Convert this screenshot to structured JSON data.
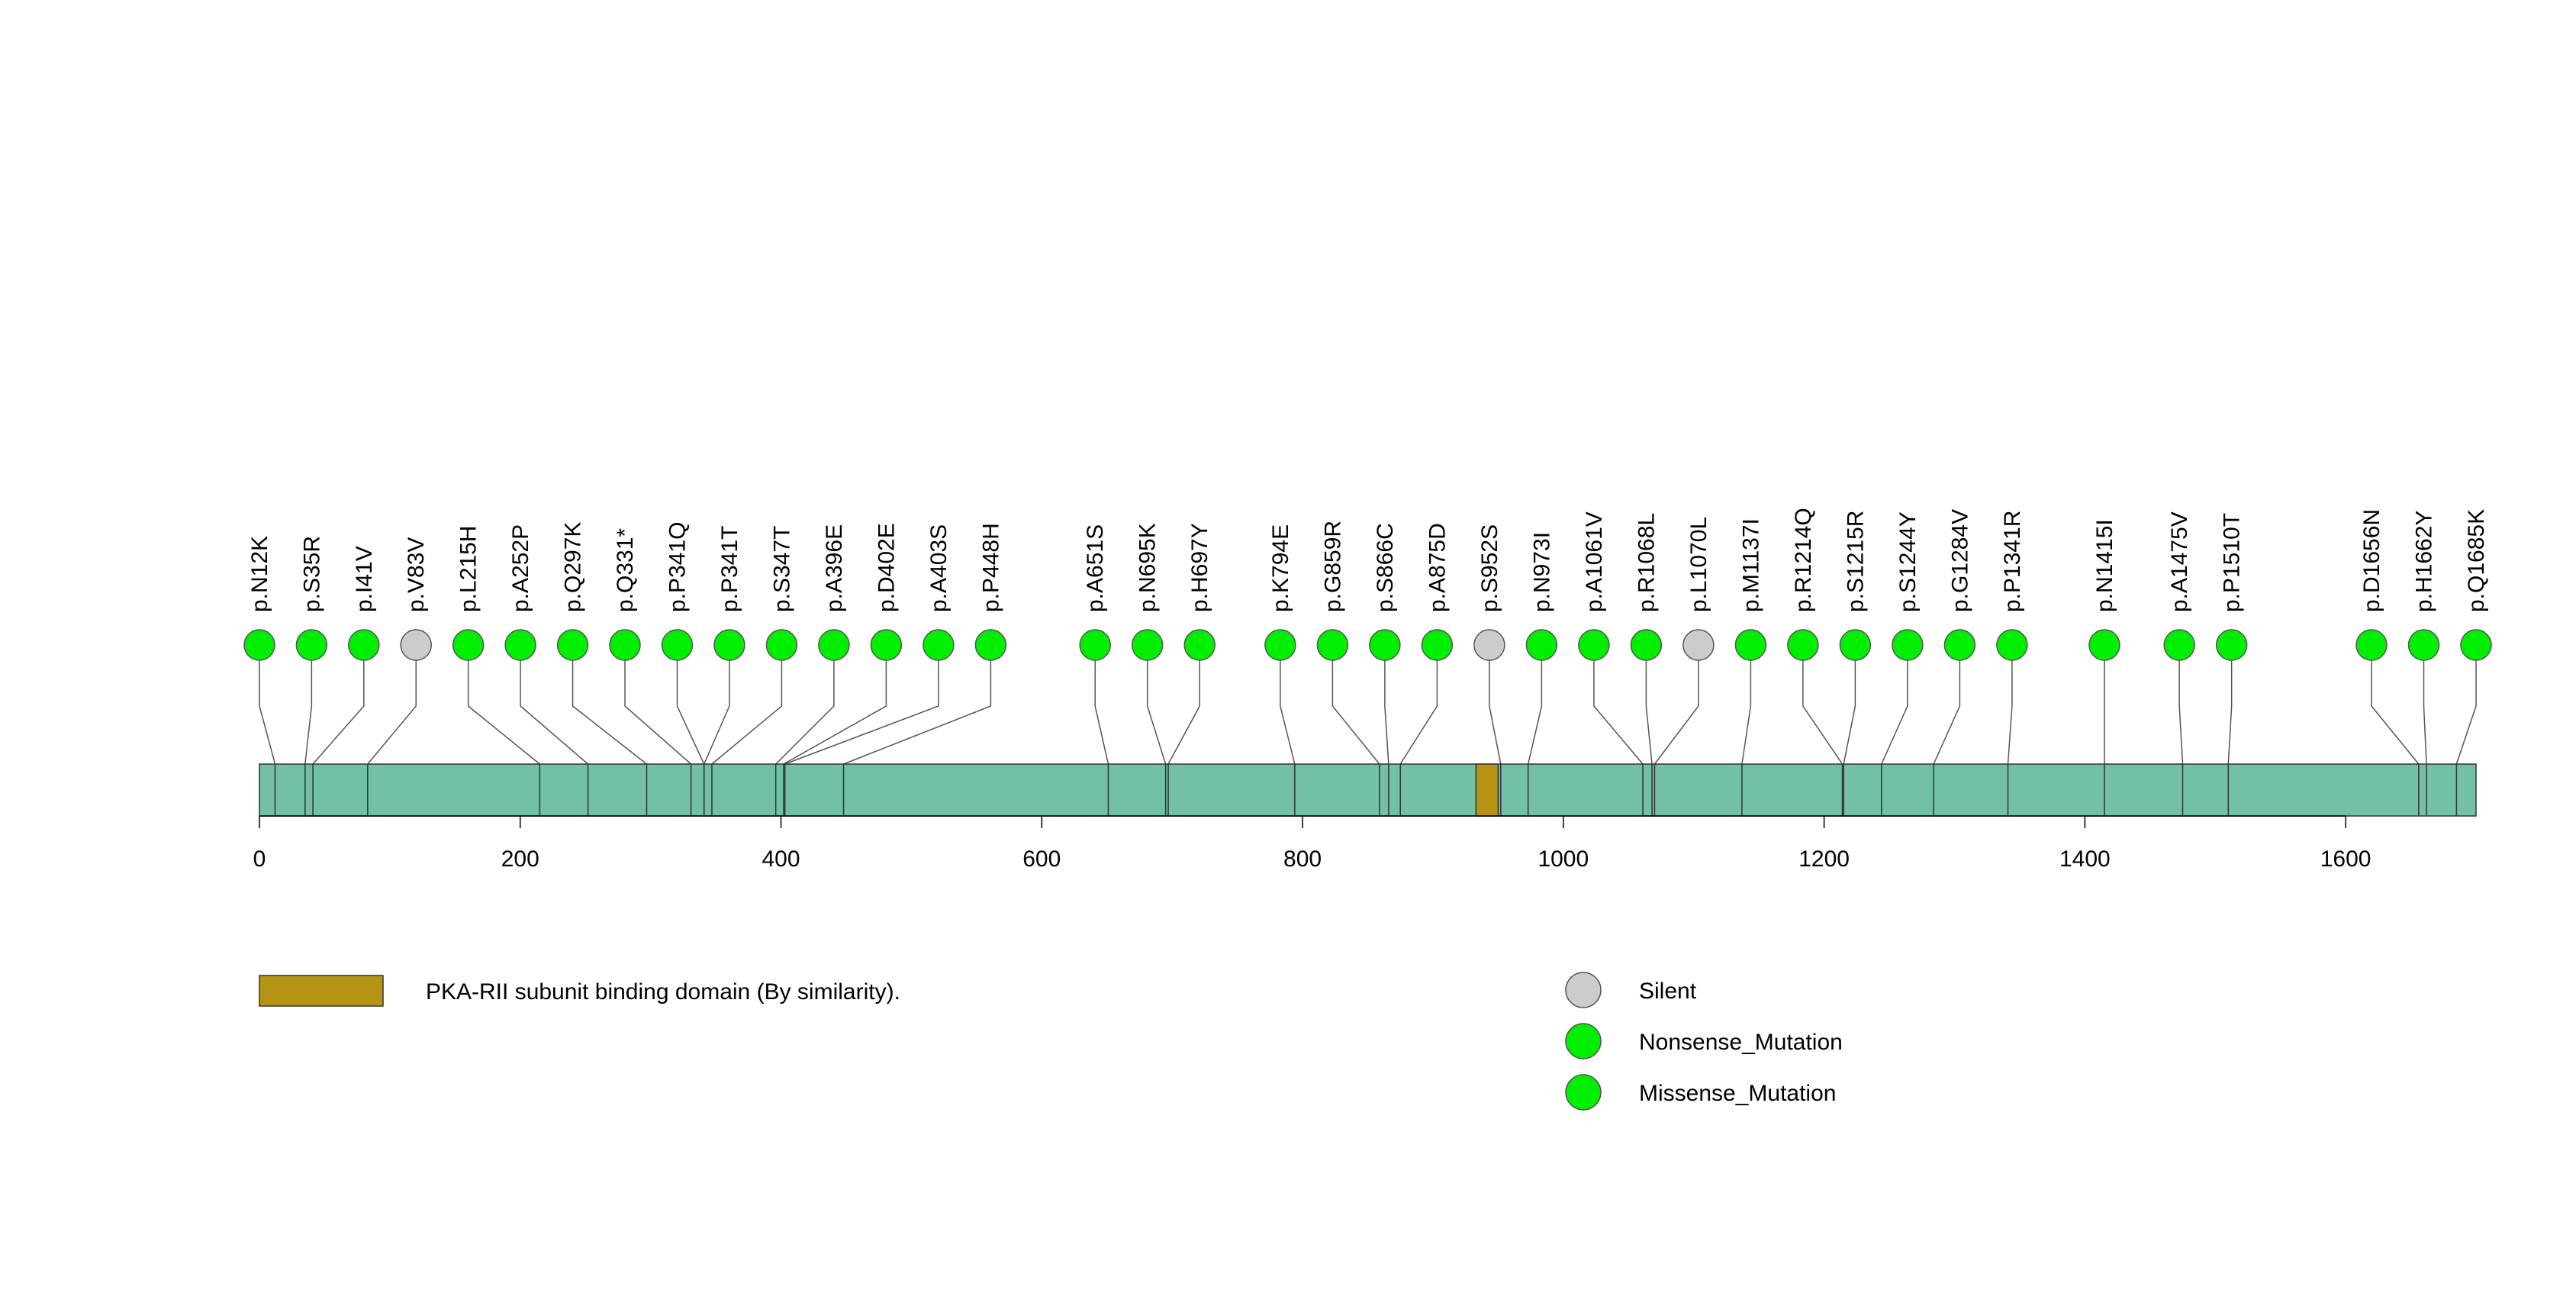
{
  "chart_data": {
    "type": "lollipop",
    "axis": {
      "min": 0,
      "max": 1700,
      "ticks": [
        "0",
        "200",
        "400",
        "600",
        "800",
        "1000",
        "1200",
        "1400",
        "1600"
      ]
    },
    "protein": {
      "length": 1700,
      "color": "#72c0a8"
    },
    "domains": [
      {
        "name": "PKA-RII subunit binding domain (By similarity).",
        "start": 933,
        "end": 950,
        "color": "#b59414"
      }
    ],
    "mutations": [
      {
        "label": "p.N12K",
        "pos": 12,
        "type": "Missense_Mutation"
      },
      {
        "label": "p.S35R",
        "pos": 35,
        "type": "Missense_Mutation"
      },
      {
        "label": "p.I41V",
        "pos": 41,
        "type": "Missense_Mutation"
      },
      {
        "label": "p.V83V",
        "pos": 83,
        "type": "Silent"
      },
      {
        "label": "p.L215H",
        "pos": 215,
        "type": "Missense_Mutation"
      },
      {
        "label": "p.A252P",
        "pos": 252,
        "type": "Missense_Mutation"
      },
      {
        "label": "p.Q297K",
        "pos": 297,
        "type": "Missense_Mutation"
      },
      {
        "label": "p.Q331*",
        "pos": 331,
        "type": "Nonsense_Mutation"
      },
      {
        "label": "p.P341Q",
        "pos": 341,
        "type": "Missense_Mutation"
      },
      {
        "label": "p.P341T",
        "pos": 341,
        "type": "Missense_Mutation"
      },
      {
        "label": "p.S347T",
        "pos": 347,
        "type": "Missense_Mutation"
      },
      {
        "label": "p.A396E",
        "pos": 396,
        "type": "Missense_Mutation"
      },
      {
        "label": "p.D402E",
        "pos": 402,
        "type": "Missense_Mutation"
      },
      {
        "label": "p.A403S",
        "pos": 403,
        "type": "Missense_Mutation"
      },
      {
        "label": "p.P448H",
        "pos": 448,
        "type": "Missense_Mutation"
      },
      {
        "label": "p.A651S",
        "pos": 651,
        "type": "Missense_Mutation"
      },
      {
        "label": "p.N695K",
        "pos": 695,
        "type": "Missense_Mutation"
      },
      {
        "label": "p.H697Y",
        "pos": 697,
        "type": "Missense_Mutation"
      },
      {
        "label": "p.K794E",
        "pos": 794,
        "type": "Missense_Mutation"
      },
      {
        "label": "p.G859R",
        "pos": 859,
        "type": "Missense_Mutation"
      },
      {
        "label": "p.S866C",
        "pos": 866,
        "type": "Missense_Mutation"
      },
      {
        "label": "p.A875D",
        "pos": 875,
        "type": "Missense_Mutation"
      },
      {
        "label": "p.S952S",
        "pos": 952,
        "type": "Silent"
      },
      {
        "label": "p.N973I",
        "pos": 973,
        "type": "Missense_Mutation"
      },
      {
        "label": "p.A1061V",
        "pos": 1061,
        "type": "Missense_Mutation"
      },
      {
        "label": "p.R1068L",
        "pos": 1068,
        "type": "Missense_Mutation"
      },
      {
        "label": "p.L1070L",
        "pos": 1070,
        "type": "Silent"
      },
      {
        "label": "p.M1137I",
        "pos": 1137,
        "type": "Missense_Mutation"
      },
      {
        "label": "p.R1214Q",
        "pos": 1214,
        "type": "Missense_Mutation"
      },
      {
        "label": "p.S1215R",
        "pos": 1215,
        "type": "Missense_Mutation"
      },
      {
        "label": "p.S1244Y",
        "pos": 1244,
        "type": "Missense_Mutation"
      },
      {
        "label": "p.G1284V",
        "pos": 1284,
        "type": "Missense_Mutation"
      },
      {
        "label": "p.P1341R",
        "pos": 1341,
        "type": "Missense_Mutation"
      },
      {
        "label": "p.N1415I",
        "pos": 1415,
        "type": "Missense_Mutation"
      },
      {
        "label": "p.A1475V",
        "pos": 1475,
        "type": "Missense_Mutation"
      },
      {
        "label": "p.P1510T",
        "pos": 1510,
        "type": "Missense_Mutation"
      },
      {
        "label": "p.D1656N",
        "pos": 1656,
        "type": "Missense_Mutation"
      },
      {
        "label": "p.H1662Y",
        "pos": 1662,
        "type": "Missense_Mutation"
      },
      {
        "label": "p.Q1685K",
        "pos": 1685,
        "type": "Missense_Mutation"
      }
    ],
    "legend": {
      "domains": [
        "PKA-RII subunit binding domain (By similarity)."
      ],
      "mutation_types": [
        {
          "name": "Silent",
          "color": "#cccccc"
        },
        {
          "name": "Nonsense_Mutation",
          "color": "#00ee00"
        },
        {
          "name": "Missense_Mutation",
          "color": "#00ee00"
        }
      ]
    }
  }
}
